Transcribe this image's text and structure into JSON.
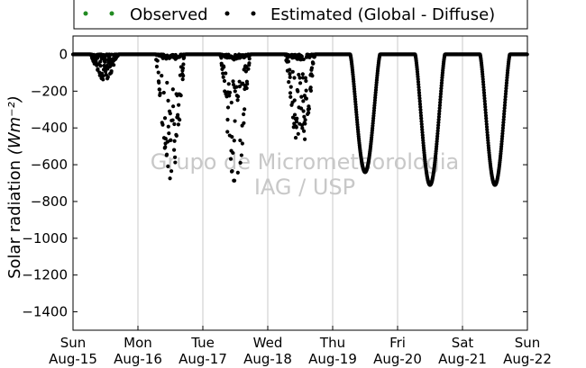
{
  "chart_data": {
    "type": "scatter",
    "title": "",
    "xlabel": "",
    "ylabel": "Solar radiation",
    "ylabel_unit": "(Wm⁻²)",
    "ylim": [
      -1500,
      100
    ],
    "yticks": [
      0,
      -200,
      -400,
      -600,
      -800,
      -1000,
      -1200,
      -1400
    ],
    "xlim": [
      0,
      7
    ],
    "xticks": [
      {
        "x": 0,
        "day": "Sun",
        "date": "Aug-15"
      },
      {
        "x": 1,
        "day": "Mon",
        "date": "Aug-16"
      },
      {
        "x": 2,
        "day": "Tue",
        "date": "Aug-17"
      },
      {
        "x": 3,
        "day": "Wed",
        "date": "Aug-18"
      },
      {
        "x": 4,
        "day": "Thu",
        "date": "Aug-19"
      },
      {
        "x": 5,
        "day": "Fri",
        "date": "Aug-20"
      },
      {
        "x": 6,
        "day": "Sat",
        "date": "Aug-21"
      },
      {
        "x": 7,
        "day": "Sun",
        "date": "Aug-22"
      }
    ],
    "grid": "vertical",
    "legend_placement": "top-center",
    "series": [
      {
        "name": "Observed",
        "color": "#228b22",
        "values": []
      },
      {
        "name": "Estimated (Global - Diffuse)",
        "color": "#000000",
        "days": [
          {
            "day": 0,
            "rise": 0.27,
            "set": 0.7,
            "peak": -140,
            "shape": "scatter"
          },
          {
            "day": 1,
            "rise": 0.27,
            "set": 0.73,
            "peak": -710,
            "shape": "scatter"
          },
          {
            "day": 2,
            "rise": 0.27,
            "set": 0.73,
            "peak": -740,
            "shape": "scatter"
          },
          {
            "day": 3,
            "rise": 0.27,
            "set": 0.73,
            "peak": -560,
            "shape": "scatter"
          },
          {
            "day": 4,
            "rise": 0.27,
            "set": 0.73,
            "peak": -640,
            "shape": "smooth"
          },
          {
            "day": 5,
            "rise": 0.27,
            "set": 0.73,
            "peak": -710,
            "shape": "smooth"
          },
          {
            "day": 6,
            "rise": 0.27,
            "set": 0.73,
            "peak": -710,
            "shape": "smooth"
          }
        ]
      }
    ],
    "watermark": [
      "Grupo de Micrometeorologia",
      "IAG / USP"
    ]
  }
}
